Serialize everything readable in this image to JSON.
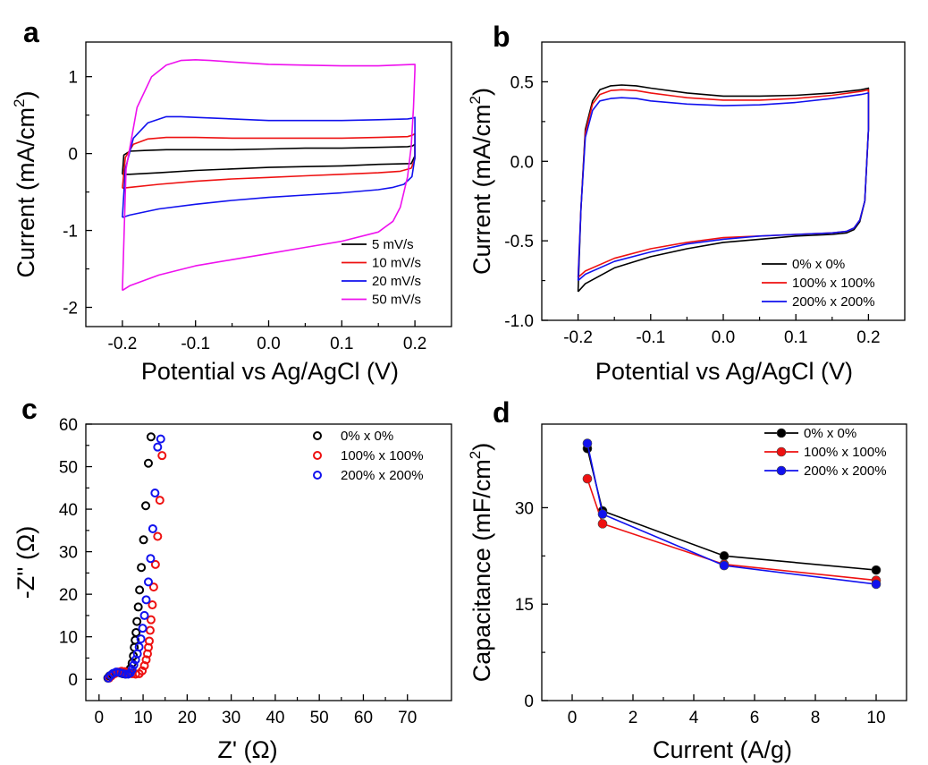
{
  "chart_data": [
    {
      "panel": "a",
      "type": "line",
      "xlabel": "Potential vs Ag/AgCl (V)",
      "ylabel_main": "Current (mA/cm",
      "ylabel_sup": "2",
      "ylabel_end": ")",
      "xlim": [
        -0.25,
        0.25
      ],
      "ylim": [
        -2.25,
        1.45
      ],
      "xticks": [
        -0.2,
        -0.1,
        0.0,
        0.1,
        0.2
      ],
      "xtick_labels": [
        "-0.2",
        "-0.1",
        "0.0",
        "0.1",
        "0.2"
      ],
      "yticks": [
        -2,
        -1,
        0,
        1
      ],
      "ytick_labels": [
        "-2",
        "-1",
        "0",
        "1"
      ],
      "legend_position": "bottom-right",
      "series": [
        {
          "name": "5 mV/s",
          "color": "#000000",
          "x": [
            -0.2,
            -0.198,
            -0.19,
            -0.17,
            -0.14,
            -0.1,
            -0.05,
            0.0,
            0.05,
            0.1,
            0.15,
            0.19,
            0.197,
            0.2,
            0.2,
            0.195,
            0.15,
            0.1,
            0.05,
            0.0,
            -0.05,
            -0.1,
            -0.15,
            -0.19,
            -0.2
          ],
          "y": [
            -0.27,
            -0.02,
            0.03,
            0.04,
            0.05,
            0.05,
            0.05,
            0.06,
            0.07,
            0.07,
            0.08,
            0.09,
            0.1,
            0.12,
            -0.03,
            -0.13,
            -0.14,
            -0.16,
            -0.17,
            -0.18,
            -0.2,
            -0.22,
            -0.25,
            -0.27,
            -0.27
          ]
        },
        {
          "name": "10 mV/s",
          "color": "#ee1111",
          "x": [
            -0.2,
            -0.196,
            -0.185,
            -0.165,
            -0.14,
            -0.1,
            -0.05,
            0.0,
            0.05,
            0.1,
            0.15,
            0.19,
            0.197,
            0.2,
            0.2,
            0.195,
            0.18,
            0.15,
            0.1,
            0.05,
            0.0,
            -0.05,
            -0.1,
            -0.15,
            -0.19,
            -0.2
          ],
          "y": [
            -0.45,
            -0.05,
            0.12,
            0.19,
            0.21,
            0.21,
            0.2,
            0.2,
            0.2,
            0.2,
            0.21,
            0.22,
            0.24,
            0.26,
            -0.07,
            -0.19,
            -0.23,
            -0.25,
            -0.27,
            -0.29,
            -0.31,
            -0.33,
            -0.36,
            -0.4,
            -0.44,
            -0.45
          ]
        },
        {
          "name": "20 mV/s",
          "color": "#1111ee",
          "x": [
            -0.2,
            -0.196,
            -0.185,
            -0.165,
            -0.14,
            -0.12,
            -0.1,
            -0.05,
            0.0,
            0.05,
            0.1,
            0.15,
            0.19,
            0.197,
            0.2,
            0.2,
            0.196,
            0.185,
            0.17,
            0.15,
            0.1,
            0.05,
            0.0,
            -0.05,
            -0.1,
            -0.15,
            -0.19,
            -0.2
          ],
          "y": [
            -0.83,
            -0.2,
            0.2,
            0.4,
            0.48,
            0.48,
            0.47,
            0.45,
            0.43,
            0.43,
            0.43,
            0.44,
            0.45,
            0.46,
            0.47,
            -0.05,
            -0.3,
            -0.4,
            -0.44,
            -0.47,
            -0.51,
            -0.54,
            -0.57,
            -0.61,
            -0.66,
            -0.72,
            -0.8,
            -0.83
          ]
        },
        {
          "name": "50 mV/s",
          "color": "#ee11ee",
          "x": [
            -0.2,
            -0.195,
            -0.18,
            -0.16,
            -0.14,
            -0.12,
            -0.1,
            -0.08,
            -0.05,
            0.0,
            0.05,
            0.1,
            0.15,
            0.2,
            0.2,
            0.198,
            0.195,
            0.19,
            0.18,
            0.17,
            0.15,
            0.1,
            0.05,
            0.0,
            -0.05,
            -0.1,
            -0.15,
            -0.19,
            -0.2
          ],
          "y": [
            -1.78,
            -0.2,
            0.6,
            1.0,
            1.15,
            1.21,
            1.22,
            1.21,
            1.19,
            1.16,
            1.15,
            1.14,
            1.14,
            1.16,
            1.09,
            0.6,
            0.1,
            -0.3,
            -0.7,
            -0.88,
            -1.02,
            -1.14,
            -1.22,
            -1.3,
            -1.38,
            -1.46,
            -1.58,
            -1.72,
            -1.78
          ]
        }
      ]
    },
    {
      "panel": "b",
      "type": "line",
      "xlabel": "Potential vs Ag/AgCl (V)",
      "ylabel_main": "Current (mA/cm",
      "ylabel_sup": "2",
      "ylabel_end": ")",
      "xlim": [
        -0.25,
        0.25
      ],
      "ylim": [
        -1.0,
        0.75
      ],
      "xticks": [
        -0.2,
        -0.1,
        0.0,
        0.1,
        0.2
      ],
      "xtick_labels": [
        "-0.2",
        "-0.1",
        "0.0",
        "0.1",
        "0.2"
      ],
      "yticks": [
        -1.0,
        -0.5,
        0.0,
        0.5
      ],
      "ytick_labels": [
        "-1.0",
        "-0.5",
        "0.0",
        "0.5"
      ],
      "legend_position": "bottom-right",
      "series": [
        {
          "name": "0% x 0%",
          "color": "#000000",
          "x": [
            -0.2,
            -0.196,
            -0.19,
            -0.18,
            -0.17,
            -0.155,
            -0.14,
            -0.12,
            -0.1,
            -0.05,
            0.0,
            0.05,
            0.1,
            0.15,
            0.19,
            0.2,
            0.2,
            0.195,
            0.188,
            0.18,
            0.17,
            0.15,
            0.1,
            0.05,
            0.0,
            -0.05,
            -0.1,
            -0.15,
            -0.19,
            -0.2
          ],
          "y": [
            -0.82,
            -0.3,
            0.2,
            0.38,
            0.45,
            0.475,
            0.48,
            0.475,
            0.46,
            0.43,
            0.41,
            0.41,
            0.415,
            0.43,
            0.45,
            0.46,
            0.2,
            -0.25,
            -0.38,
            -0.43,
            -0.45,
            -0.46,
            -0.47,
            -0.49,
            -0.51,
            -0.55,
            -0.6,
            -0.67,
            -0.77,
            -0.82
          ]
        },
        {
          "name": "100% x 100%",
          "color": "#ee1111",
          "x": [
            -0.2,
            -0.196,
            -0.19,
            -0.18,
            -0.17,
            -0.155,
            -0.14,
            -0.12,
            -0.1,
            -0.05,
            0.0,
            0.05,
            0.1,
            0.15,
            0.19,
            0.2,
            0.2,
            0.195,
            0.188,
            0.18,
            0.17,
            0.15,
            0.1,
            0.05,
            0.0,
            -0.05,
            -0.1,
            -0.15,
            -0.19,
            -0.2
          ],
          "y": [
            -0.73,
            -0.3,
            0.18,
            0.36,
            0.42,
            0.445,
            0.45,
            0.445,
            0.43,
            0.4,
            0.385,
            0.385,
            0.395,
            0.415,
            0.44,
            0.45,
            0.2,
            -0.25,
            -0.37,
            -0.42,
            -0.44,
            -0.45,
            -0.46,
            -0.47,
            -0.48,
            -0.51,
            -0.55,
            -0.61,
            -0.69,
            -0.73
          ]
        },
        {
          "name": "200% x 200%",
          "color": "#1111ee",
          "x": [
            -0.2,
            -0.196,
            -0.19,
            -0.18,
            -0.17,
            -0.155,
            -0.14,
            -0.12,
            -0.1,
            -0.05,
            0.0,
            0.05,
            0.1,
            0.15,
            0.19,
            0.2,
            0.2,
            0.195,
            0.188,
            0.18,
            0.17,
            0.15,
            0.1,
            0.05,
            0.0,
            -0.05,
            -0.1,
            -0.15,
            -0.19,
            -0.2
          ],
          "y": [
            -0.75,
            -0.3,
            0.15,
            0.32,
            0.38,
            0.395,
            0.4,
            0.395,
            0.38,
            0.36,
            0.35,
            0.355,
            0.37,
            0.395,
            0.42,
            0.43,
            0.2,
            -0.25,
            -0.37,
            -0.42,
            -0.44,
            -0.45,
            -0.46,
            -0.47,
            -0.49,
            -0.52,
            -0.57,
            -0.63,
            -0.71,
            -0.75
          ]
        }
      ]
    },
    {
      "panel": "c",
      "type": "scatter",
      "xlabel": "Z' (Ω)",
      "ylabel": "-Z'' (Ω)",
      "xlim": [
        -3,
        80
      ],
      "ylim": [
        -5,
        60
      ],
      "xticks": [
        0,
        10,
        20,
        30,
        40,
        50,
        60,
        70
      ],
      "xtick_labels": [
        "0",
        "10",
        "20",
        "30",
        "40",
        "50",
        "60",
        "70"
      ],
      "yticks": [
        0,
        10,
        20,
        30,
        40,
        50,
        60
      ],
      "ytick_labels": [
        "0",
        "10",
        "20",
        "30",
        "40",
        "50",
        "60"
      ],
      "legend_position": "top-right",
      "series": [
        {
          "name": "0% x 0%",
          "color": "#000000",
          "x": [
            2.0,
            2.4,
            3.0,
            3.6,
            4.2,
            4.8,
            5.4,
            6.0,
            6.6,
            7.1,
            7.5,
            7.8,
            8.0,
            8.2,
            8.4,
            8.6,
            8.9,
            9.2,
            9.6,
            10.1,
            10.6,
            11.2,
            11.8
          ],
          "y": [
            0.3,
            0.8,
            1.2,
            1.5,
            1.6,
            1.5,
            1.3,
            1.2,
            1.6,
            2.5,
            3.8,
            5.5,
            7.5,
            9.2,
            11.0,
            13.6,
            17.0,
            21.0,
            26.3,
            32.8,
            40.8,
            50.8,
            57.0
          ]
        },
        {
          "name": "100% x 100%",
          "color": "#ee1111",
          "x": [
            2.3,
            2.8,
            3.5,
            4.3,
            5.1,
            5.9,
            6.7,
            7.5,
            8.3,
            9.1,
            9.8,
            10.3,
            10.7,
            11.0,
            11.2,
            11.4,
            11.6,
            11.8,
            12.1,
            12.4,
            12.8,
            13.3,
            13.8,
            14.3
          ],
          "y": [
            0.3,
            0.8,
            1.3,
            1.7,
            1.9,
            1.8,
            1.6,
            1.3,
            1.2,
            1.3,
            2.0,
            3.2,
            4.6,
            6.0,
            7.5,
            9.0,
            11.5,
            14.0,
            17.5,
            21.7,
            27.0,
            33.6,
            42.1,
            52.6
          ]
        },
        {
          "name": "200% x 200%",
          "color": "#1111ee",
          "x": [
            2.1,
            2.6,
            3.2,
            3.9,
            4.6,
            5.3,
            6.0,
            6.6,
            7.1,
            7.5,
            7.9,
            8.3,
            8.7,
            9.1,
            9.5,
            9.9,
            10.3,
            10.7,
            11.2,
            11.7,
            12.2,
            12.7,
            13.3,
            14.0
          ],
          "y": [
            0.3,
            0.9,
            1.4,
            1.7,
            1.6,
            1.4,
            1.2,
            1.2,
            1.5,
            2.3,
            3.4,
            4.6,
            6.0,
            7.6,
            9.5,
            12.0,
            15.0,
            18.7,
            22.9,
            28.4,
            35.4,
            43.8,
            54.6,
            56.5
          ]
        }
      ]
    },
    {
      "panel": "d",
      "type": "line",
      "xlabel": "Current (A/g)",
      "ylabel_main": "Capacitance (mF/cm",
      "ylabel_sup": "2",
      "ylabel_end": ")",
      "xlim": [
        -1,
        11
      ],
      "ylim": [
        0,
        43
      ],
      "xticks": [
        0,
        2,
        4,
        6,
        8,
        10
      ],
      "xtick_labels": [
        "0",
        "2",
        "4",
        "6",
        "8",
        "10"
      ],
      "yticks": [
        0,
        15,
        30
      ],
      "ytick_labels": [
        "0",
        "15",
        "30"
      ],
      "legend_position": "top-right",
      "series": [
        {
          "name": "0% x 0%",
          "color": "#000000",
          "x": [
            0.5,
            1,
            5,
            10
          ],
          "y": [
            39.2,
            29.5,
            22.5,
            20.3
          ]
        },
        {
          "name": "100% x 100%",
          "color": "#ee1111",
          "x": [
            0.5,
            1,
            5,
            10
          ],
          "y": [
            34.5,
            27.5,
            21.2,
            18.7
          ]
        },
        {
          "name": "200% x 200%",
          "color": "#1111ee",
          "x": [
            0.5,
            1,
            5,
            10
          ],
          "y": [
            40.0,
            29.0,
            21.0,
            18.1
          ]
        }
      ]
    }
  ],
  "panel_labels": {
    "a": "a",
    "b": "b",
    "c": "c",
    "d": "d"
  }
}
